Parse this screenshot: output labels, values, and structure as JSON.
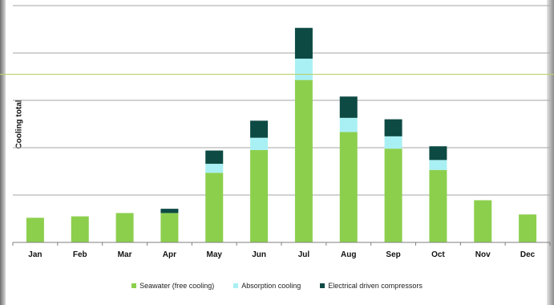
{
  "chart_data": {
    "type": "bar",
    "stacked": true,
    "title": "",
    "xlabel": "",
    "ylabel": "Cooling total",
    "ylim": [
      0,
      5
    ],
    "grid": true,
    "legend": "bottom",
    "categories": [
      "Jan",
      "Feb",
      "Mar",
      "Apr",
      "May",
      "Jun",
      "Jul",
      "Aug",
      "Sep",
      "Oct",
      "Nov",
      "Dec"
    ],
    "series": [
      {
        "name": "Seawater (free cooling)",
        "color": "#8ccf4d",
        "values": [
          0.52,
          0.55,
          0.62,
          0.62,
          1.47,
          1.95,
          3.43,
          2.33,
          1.98,
          1.53,
          0.89,
          0.59
        ]
      },
      {
        "name": "Absorption cooling",
        "color": "#a9f0f4",
        "values": [
          0,
          0,
          0,
          0,
          0.19,
          0.26,
          0.45,
          0.3,
          0.26,
          0.21,
          0,
          0
        ]
      },
      {
        "name": "Electrical driven compressors",
        "color": "#0d4a43",
        "values": [
          0,
          0,
          0,
          0.09,
          0.28,
          0.36,
          0.65,
          0.45,
          0.36,
          0.29,
          0,
          0
        ]
      }
    ],
    "reference_line": {
      "value": 3.55,
      "color": "#b7d26b"
    }
  }
}
